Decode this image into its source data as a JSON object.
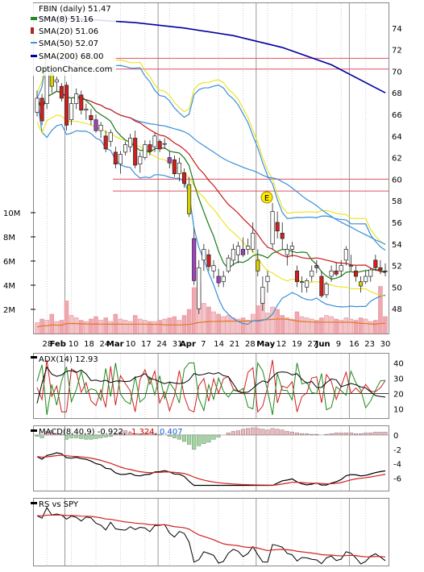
{
  "chart_data": {
    "type": "candlestick",
    "price_panel": {
      "title": "FBIN (daily) 51.47",
      "watermark": "OptionChance.com",
      "legend": [
        {
          "label": "SMA(8) 51.16",
          "color": "#228b22"
        },
        {
          "label": "SMA(20) 51.06",
          "color": "#b22222"
        },
        {
          "label": "SMA(50) 52.07",
          "color": "#4a90d9"
        },
        {
          "label": "SMA(200) 68.00",
          "color": "#0000a0"
        }
      ],
      "y_ticks": [
        "74",
        "72",
        "70",
        "68",
        "66",
        "64",
        "62",
        "60",
        "58",
        "56",
        "54",
        "52",
        "50",
        "48"
      ],
      "ylim": [
        46,
        76
      ],
      "volume_ticks": [
        "10M",
        "8M",
        "6M",
        "4M",
        "2M"
      ],
      "earnings_marker": "E",
      "hlines": [
        71.2,
        70.2,
        60.0,
        58.9
      ],
      "candles": [
        [
          0,
          66.2,
          68.2,
          65.8,
          67.5
        ],
        [
          1,
          67.5,
          67.9,
          65.0,
          65.4
        ],
        [
          2,
          67.0,
          70.5,
          66.5,
          70.0
        ],
        [
          3,
          69.8,
          70.6,
          68.0,
          68.6
        ],
        [
          4,
          69.0,
          69.5,
          68.2,
          69.2
        ],
        [
          5,
          68.6,
          68.9,
          67.2,
          67.5
        ],
        [
          6,
          68.7,
          69.0,
          64.5,
          65.0
        ],
        [
          7,
          65.5,
          67.5,
          65.0,
          67.0
        ],
        [
          8,
          67.0,
          68.4,
          66.5,
          67.9
        ],
        [
          9,
          67.8,
          68.2,
          66.0,
          66.4
        ],
        [
          10,
          66.4,
          67.0,
          65.5,
          66.5
        ],
        [
          11,
          65.9,
          66.5,
          65.0,
          65.5
        ],
        [
          12,
          65.5,
          66.0,
          64.3,
          64.5
        ],
        [
          13,
          64.5,
          65.3,
          63.8,
          65.0
        ],
        [
          14,
          64.0,
          64.5,
          62.5,
          62.8
        ],
        [
          15,
          63.5,
          64.6,
          63.0,
          64.3
        ],
        [
          16,
          62.5,
          63.0,
          61.0,
          61.4
        ],
        [
          17,
          61.4,
          62.6,
          60.5,
          62.3
        ],
        [
          18,
          62.5,
          63.5,
          62.2,
          63.2
        ],
        [
          19,
          63.0,
          64.2,
          62.5,
          63.8
        ],
        [
          20,
          63.8,
          64.5,
          61.0,
          61.3
        ],
        [
          21,
          61.4,
          62.5,
          60.6,
          62.1
        ],
        [
          22,
          62.0,
          63.6,
          61.8,
          63.2
        ],
        [
          23,
          63.2,
          63.6,
          62.2,
          62.6
        ],
        [
          24,
          63.0,
          64.3,
          62.5,
          64.0
        ],
        [
          25,
          63.5,
          63.7,
          62.5,
          62.8
        ],
        [
          26,
          63.3,
          63.8,
          62.8,
          63.3
        ],
        [
          27,
          62.0,
          62.6,
          61.0,
          61.5
        ],
        [
          28,
          61.8,
          62.2,
          60.2,
          60.5
        ],
        [
          29,
          60.5,
          62.0,
          59.8,
          61.5
        ],
        [
          30,
          60.6,
          61.0,
          59.2,
          59.6
        ],
        [
          31,
          59.5,
          60.2,
          56.5,
          56.8
        ],
        [
          32,
          54.5,
          55.5,
          50.2,
          50.6
        ],
        [
          33,
          48.0,
          52.5,
          47.5,
          51.8
        ],
        [
          34,
          52.5,
          54.0,
          51.5,
          53.5
        ],
        [
          35,
          53.0,
          53.5,
          51.5,
          51.9
        ],
        [
          36,
          51.5,
          52.5,
          50.8,
          52.0
        ],
        [
          37,
          51.0,
          51.7,
          50.0,
          50.4
        ],
        [
          38,
          50.5,
          51.5,
          50.0,
          51.0
        ],
        [
          39,
          51.5,
          53.0,
          51.3,
          52.7
        ],
        [
          40,
          52.5,
          54.0,
          52.0,
          53.5
        ],
        [
          41,
          53.0,
          54.2,
          52.2,
          53.8
        ],
        [
          42,
          53.5,
          54.6,
          52.8,
          53.0
        ],
        [
          43,
          53.5,
          54.5,
          53.0,
          53.8
        ],
        [
          44,
          53.5,
          56.0,
          53.2,
          55.0
        ],
        [
          45,
          52.5,
          53.5,
          51.0,
          51.5
        ],
        [
          46,
          48.5,
          51.0,
          47.8,
          50.0
        ],
        [
          47,
          50.5,
          51.5,
          49.5,
          51.0
        ],
        [
          48,
          54.0,
          57.8,
          53.5,
          57.0
        ],
        [
          49,
          56.0,
          57.0,
          54.5,
          55.2
        ],
        [
          50,
          55.0,
          56.0,
          53.5,
          54.5
        ],
        [
          51,
          53.0,
          54.0,
          52.0,
          53.5
        ],
        [
          52,
          53.5,
          54.2,
          52.8,
          53.8
        ],
        [
          53,
          51.5,
          52.0,
          50.0,
          50.5
        ],
        [
          54,
          50.5,
          51.0,
          49.5,
          50.5
        ],
        [
          55,
          50.0,
          50.8,
          49.5,
          50.6
        ],
        [
          56,
          51.0,
          52.0,
          50.5,
          51.5
        ],
        [
          57,
          52.0,
          52.5,
          51.3,
          51.8
        ],
        [
          58,
          51.0,
          51.5,
          49.0,
          49.2
        ],
        [
          59,
          49.3,
          50.5,
          49.0,
          50.3
        ],
        [
          60,
          51.0,
          52.0,
          50.5,
          51.5
        ],
        [
          61,
          51.5,
          52.3,
          51.0,
          51.2
        ],
        [
          62,
          51.5,
          52.5,
          51.0,
          52.0
        ],
        [
          63,
          52.5,
          53.8,
          52.0,
          53.5
        ],
        [
          64,
          52.0,
          53.0,
          51.5,
          52.0
        ],
        [
          65,
          51.5,
          52.0,
          50.5,
          51.0
        ],
        [
          66,
          50.5,
          51.0,
          49.5,
          50.1
        ],
        [
          67,
          50.5,
          51.5,
          50.3,
          51.0
        ],
        [
          68,
          51.0,
          51.8,
          50.5,
          51.6
        ],
        [
          69,
          52.5,
          53.0,
          51.5,
          51.8
        ],
        [
          70,
          51.8,
          52.5,
          51.2,
          51.6
        ],
        [
          71,
          51.5,
          52.2,
          51.0,
          51.47
        ]
      ],
      "volume_millions": [
        0.9,
        1.2,
        1.1,
        1.6,
        1.0,
        1.1,
        2.7,
        1.5,
        1.3,
        1.1,
        1.0,
        1.2,
        1.4,
        1.1,
        1.3,
        1.0,
        1.6,
        1.2,
        1.1,
        1.0,
        1.5,
        1.2,
        1.1,
        1.0,
        1.0,
        1.1,
        1.2,
        1.3,
        1.4,
        1.1,
        1.5,
        2.0,
        3.8,
        4.2,
        2.5,
        2.2,
        1.8,
        1.6,
        1.4,
        1.5,
        1.3,
        1.2,
        1.3,
        1.1,
        1.6,
        2.3,
        2.9,
        1.7,
        2.2,
        2.0,
        1.5,
        1.3,
        1.2,
        1.8,
        1.4,
        1.3,
        1.2,
        1.1,
        1.3,
        1.5,
        1.4,
        1.2,
        1.1,
        1.3,
        1.2,
        1.1,
        1.3,
        1.2,
        1.0,
        1.1,
        3.9,
        1.4
      ],
      "sma200_points": [
        [
          0,
          75.0
        ],
        [
          10,
          74.8
        ],
        [
          20,
          74.5
        ],
        [
          30,
          74.0
        ],
        [
          40,
          73.3
        ],
        [
          50,
          72.2
        ],
        [
          60,
          70.6
        ],
        [
          71,
          68.0
        ]
      ],
      "x_labels": [
        "28",
        "Feb",
        "10",
        "18",
        "24",
        "Mar",
        "10",
        "17",
        "24",
        "31",
        "Apr",
        "7",
        "14",
        "21",
        "28",
        "May",
        "12",
        "19",
        "27",
        "Jun",
        "9",
        "16",
        "23",
        "30"
      ]
    },
    "adx_panel": {
      "label": "ADX(14) 12.93",
      "y_ticks": [
        "40",
        "30",
        "20",
        "10"
      ],
      "ylim": [
        5,
        45
      ],
      "reference_level": 20
    },
    "macd_panel": {
      "label": "MACD(8,40,9)",
      "macd_value": "-0.922",
      "signal_value": "-1.324",
      "histogram_value": "0.407",
      "y_ticks": [
        "0",
        "-2",
        "-4",
        "-6"
      ],
      "ylim": [
        -7.5,
        1.0
      ],
      "histogram": [
        -0.2,
        -0.4,
        0.5,
        0.6,
        0.2,
        0.1,
        -0.6,
        -0.4,
        -0.4,
        -0.5,
        -0.6,
        -0.6,
        -0.5,
        -0.4,
        -0.3,
        -0.2,
        0.2,
        0.4,
        0.6,
        0.3,
        0.2,
        0.1,
        0.3,
        0.3,
        0.2,
        0.1,
        0.0,
        -0.2,
        -0.4,
        -0.6,
        -0.9,
        -1.3,
        -2.0,
        -1.5,
        -1.2,
        -1.0,
        -0.6,
        -0.3,
        0.0,
        0.3,
        0.5,
        0.6,
        0.8,
        0.9,
        1.0,
        0.9,
        0.8,
        0.7,
        0.9,
        0.8,
        0.7,
        0.5,
        0.4,
        0.3,
        0.2,
        0.2,
        0.1,
        0.1,
        0.0,
        0.1,
        0.2,
        0.3,
        0.3,
        0.3,
        0.3,
        0.2,
        0.2,
        0.3,
        0.3,
        0.4,
        0.4,
        0.4
      ]
    },
    "rs_panel": {
      "label": "RS vs SPY"
    }
  }
}
